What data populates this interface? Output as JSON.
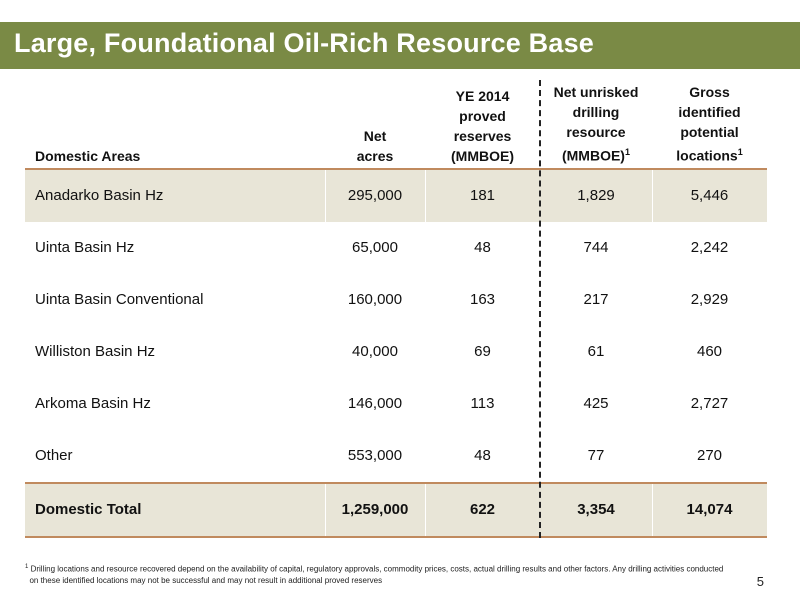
{
  "title": "Large, Foundational Oil-Rich Resource Base",
  "table": {
    "headers": {
      "area": "Domestic Areas",
      "acres_l1": "Net",
      "acres_l2": "acres",
      "reserves_l1": "YE 2014",
      "reserves_l2": "proved",
      "reserves_l3": "reserves",
      "reserves_l4": "(MMBOE)",
      "resource_l1": "Net unrisked",
      "resource_l2": "drilling",
      "resource_l3": "resource",
      "resource_l4": "(MMBOE)",
      "resource_sup": "1",
      "locations_l1": "Gross",
      "locations_l2": "identified",
      "locations_l3": "potential",
      "locations_l4": "locations",
      "locations_sup": "1"
    },
    "rows": [
      {
        "area": "Anadarko Basin Hz",
        "acres": "295,000",
        "reserves": "181",
        "resource": "1,829",
        "locations": "5,446"
      },
      {
        "area": "Uinta Basin Hz",
        "acres": "65,000",
        "reserves": "48",
        "resource": "744",
        "locations": "2,242"
      },
      {
        "area": "Uinta Basin Conventional",
        "acres": "160,000",
        "reserves": "163",
        "resource": "217",
        "locations": "2,929"
      },
      {
        "area": "Williston Basin Hz",
        "acres": "40,000",
        "reserves": "69",
        "resource": "61",
        "locations": "460"
      },
      {
        "area": "Arkoma Basin Hz",
        "acres": "146,000",
        "reserves": "113",
        "resource": "425",
        "locations": "2,727"
      },
      {
        "area": "Other",
        "acres": "553,000",
        "reserves": "48",
        "resource": "77",
        "locations": "270"
      }
    ],
    "total": {
      "area": "Domestic Total",
      "acres": "1,259,000",
      "reserves": "622",
      "resource": "3,354",
      "locations": "14,074"
    }
  },
  "footnote": {
    "marker": "1",
    "line1": "Drilling locations and resource recovered depend on the availability of capital, regulatory approvals, commodity prices, costs, actual drilling results and other factors. Any drilling activities conducted",
    "line2": "on these identified locations may not be successful and may not result in additional proved reserves"
  },
  "page_number": "5"
}
